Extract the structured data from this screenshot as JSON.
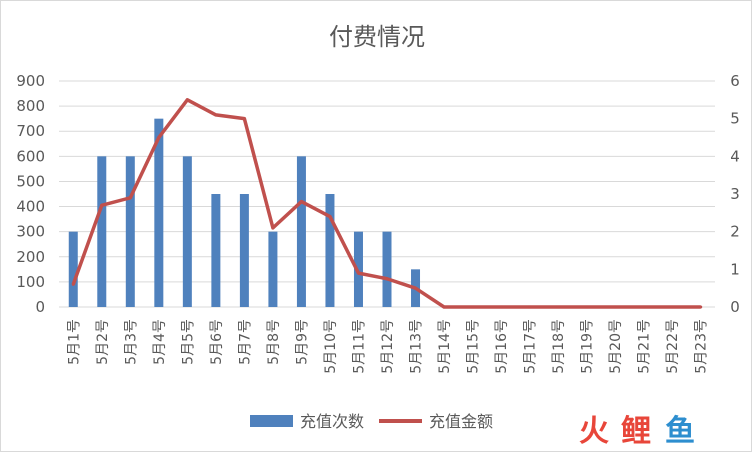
{
  "chart_data": {
    "type": "bar",
    "title": "付费情况",
    "categories": [
      "5月1号",
      "5月2号",
      "5月3号",
      "5月4号",
      "5月5号",
      "5月6号",
      "5月7号",
      "5月8号",
      "5月9号",
      "5月10号",
      "5月11号",
      "5月12号",
      "5月13号",
      "5月14号",
      "5月15号",
      "5月16号",
      "5月17号",
      "5月18号",
      "5月19号",
      "5月20号",
      "5月21号",
      "5月22号",
      "5月23号"
    ],
    "series": [
      {
        "name": "充值次数",
        "type": "bar",
        "axis": "left",
        "color": "#4f81bd",
        "values": [
          300,
          600,
          600,
          750,
          600,
          450,
          450,
          300,
          600,
          450,
          300,
          300,
          150,
          0,
          0,
          0,
          0,
          0,
          0,
          0,
          0,
          0,
          0
        ]
      },
      {
        "name": "充值金额",
        "type": "line",
        "axis": "right",
        "color": "#c0504d",
        "values": [
          0.6,
          2.7,
          2.9,
          4.5,
          5.5,
          5.1,
          5.0,
          2.1,
          2.8,
          2.4,
          0.9,
          0.75,
          0.5,
          0,
          0,
          0,
          0,
          0,
          0,
          0,
          0,
          0,
          0
        ]
      }
    ],
    "y_left": {
      "min": 0,
      "max": 900,
      "ticks": [
        0,
        100,
        200,
        300,
        400,
        500,
        600,
        700,
        800,
        900
      ]
    },
    "y_right": {
      "min": 0,
      "max": 6,
      "ticks": [
        0,
        1,
        2,
        3,
        4,
        5,
        6
      ]
    },
    "grid": true,
    "legend_position": "bottom"
  },
  "watermark": {
    "text": "火鲤鱼",
    "colors": [
      "#e8463a",
      "#e8463a",
      "#2d8ecf"
    ]
  }
}
